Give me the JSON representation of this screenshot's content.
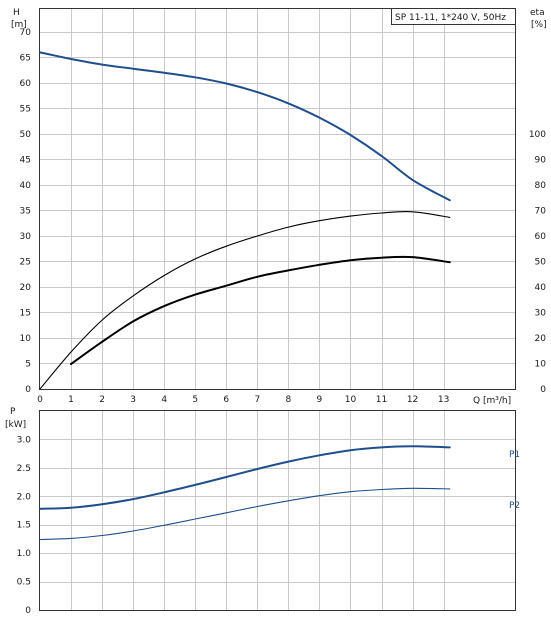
{
  "chart_data": [
    {
      "type": "line",
      "title": "SP 11-11, 1*240 V, 50Hz",
      "ylabel": "H",
      "yunit": "[m]",
      "ylabel_right": "eta",
      "yunit_right": "[%]",
      "xlabel": "Q [m³/h]",
      "xlim": [
        0,
        15.3
      ],
      "xticks": [
        "0",
        "1",
        "2",
        "3",
        "4",
        "5",
        "6",
        "7",
        "8",
        "9",
        "10",
        "11",
        "12",
        "13"
      ],
      "ylim": [
        0,
        74.5
      ],
      "yticks": [
        "0",
        "5",
        "10",
        "15",
        "20",
        "25",
        "30",
        "35",
        "40",
        "45",
        "50",
        "55",
        "60",
        "65",
        "70"
      ],
      "ylim_right": [
        0,
        149
      ],
      "yticks_right": [
        "0",
        "10",
        "20",
        "30",
        "40",
        "50",
        "60",
        "70",
        "80",
        "90",
        "100"
      ],
      "grid": true,
      "series": [
        {
          "axis": "left",
          "color": "#1f4e8c",
          "points": [
            [
              0,
              66
            ],
            [
              1,
              64.7
            ],
            [
              2,
              63.6
            ],
            [
              3,
              62.8
            ],
            [
              4,
              62.0
            ],
            [
              5,
              61.1
            ],
            [
              6,
              59.9
            ],
            [
              7,
              58.2
            ],
            [
              8,
              56.0
            ],
            [
              9,
              53.2
            ],
            [
              10,
              49.8
            ],
            [
              11,
              45.7
            ],
            [
              12,
              41.0
            ],
            [
              13.2,
              37.0
            ]
          ]
        },
        {
          "axis": "right",
          "color": "#000000",
          "points": [
            [
              0,
              0
            ],
            [
              1,
              14.5
            ],
            [
              2,
              27.0
            ],
            [
              3,
              36.5
            ],
            [
              4,
              44.5
            ],
            [
              5,
              51.0
            ],
            [
              6,
              56.0
            ],
            [
              7,
              60.0
            ],
            [
              8,
              63.5
            ],
            [
              9,
              66.0
            ],
            [
              10,
              67.8
            ],
            [
              11,
              69.0
            ],
            [
              12,
              69.5
            ],
            [
              13.2,
              67.3
            ]
          ]
        },
        {
          "axis": "right",
          "color": "#000000",
          "points": [
            [
              1,
              9.8
            ],
            [
              2,
              18.5
            ],
            [
              3,
              26.5
            ],
            [
              4,
              32.5
            ],
            [
              5,
              37.0
            ],
            [
              6,
              40.5
            ],
            [
              7,
              44.0
            ],
            [
              8,
              46.5
            ],
            [
              9,
              48.7
            ],
            [
              10,
              50.5
            ],
            [
              11,
              51.5
            ],
            [
              12,
              51.7
            ],
            [
              13.2,
              49.7
            ]
          ]
        }
      ]
    },
    {
      "type": "line",
      "ylabel": "P",
      "yunit": "[kW]",
      "xlim": [
        0,
        15.3
      ],
      "ylim": [
        0,
        3.5
      ],
      "yticks": [
        "0",
        "0.5",
        "1.0",
        "1.5",
        "2.0",
        "2.5",
        "3.0"
      ],
      "grid": true,
      "series": [
        {
          "name": "P1",
          "color": "#1f4e8c",
          "points": [
            [
              0,
              1.78
            ],
            [
              1,
              1.8
            ],
            [
              2,
              1.86
            ],
            [
              3,
              1.95
            ],
            [
              4,
              2.07
            ],
            [
              5,
              2.2
            ],
            [
              6,
              2.34
            ],
            [
              7,
              2.48
            ],
            [
              8,
              2.61
            ],
            [
              9,
              2.72
            ],
            [
              10,
              2.81
            ],
            [
              11,
              2.86
            ],
            [
              12,
              2.88
            ],
            [
              13.2,
              2.86
            ]
          ]
        },
        {
          "name": "P2",
          "color": "#1f4e8c",
          "points": [
            [
              0,
              1.24
            ],
            [
              1,
              1.26
            ],
            [
              2,
              1.31
            ],
            [
              3,
              1.39
            ],
            [
              4,
              1.49
            ],
            [
              5,
              1.6
            ],
            [
              6,
              1.71
            ],
            [
              7,
              1.82
            ],
            [
              8,
              1.92
            ],
            [
              9,
              2.01
            ],
            [
              10,
              2.08
            ],
            [
              11,
              2.12
            ],
            [
              12,
              2.14
            ],
            [
              13.2,
              2.13
            ]
          ]
        }
      ]
    }
  ]
}
